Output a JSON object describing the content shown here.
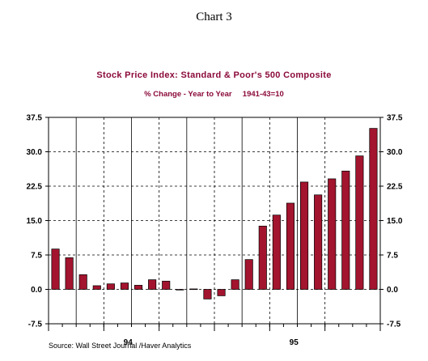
{
  "heading": "Chart 3",
  "source": "Source:  Wall Street Journal /Haver Analytics",
  "chart_data": {
    "type": "bar",
    "title": "Stock Price Index: Standard & Poor's 500 Composite",
    "subtitle": "% Change - Year to Year     1941-43=10",
    "xlabel": "",
    "ylabel": "",
    "ylim": [
      -7.5,
      37.5
    ],
    "yticks": [
      "37.5",
      "30.0",
      "22.5",
      "15.0",
      "7.5",
      "0.0",
      "-7.5"
    ],
    "xticklabels": [
      "94",
      "95"
    ],
    "grid": true,
    "bar_color": "#a3142e",
    "series": [
      {
        "values": [
          8.8,
          6.9,
          3.2,
          0.8,
          1.2,
          1.4,
          0.9,
          2.1,
          1.8,
          0.0,
          0.1,
          -2.1,
          -1.4,
          2.1,
          6.5,
          13.8,
          16.2,
          18.8,
          23.4,
          20.6,
          24.1,
          25.8,
          29.1,
          35.1
        ]
      }
    ]
  }
}
